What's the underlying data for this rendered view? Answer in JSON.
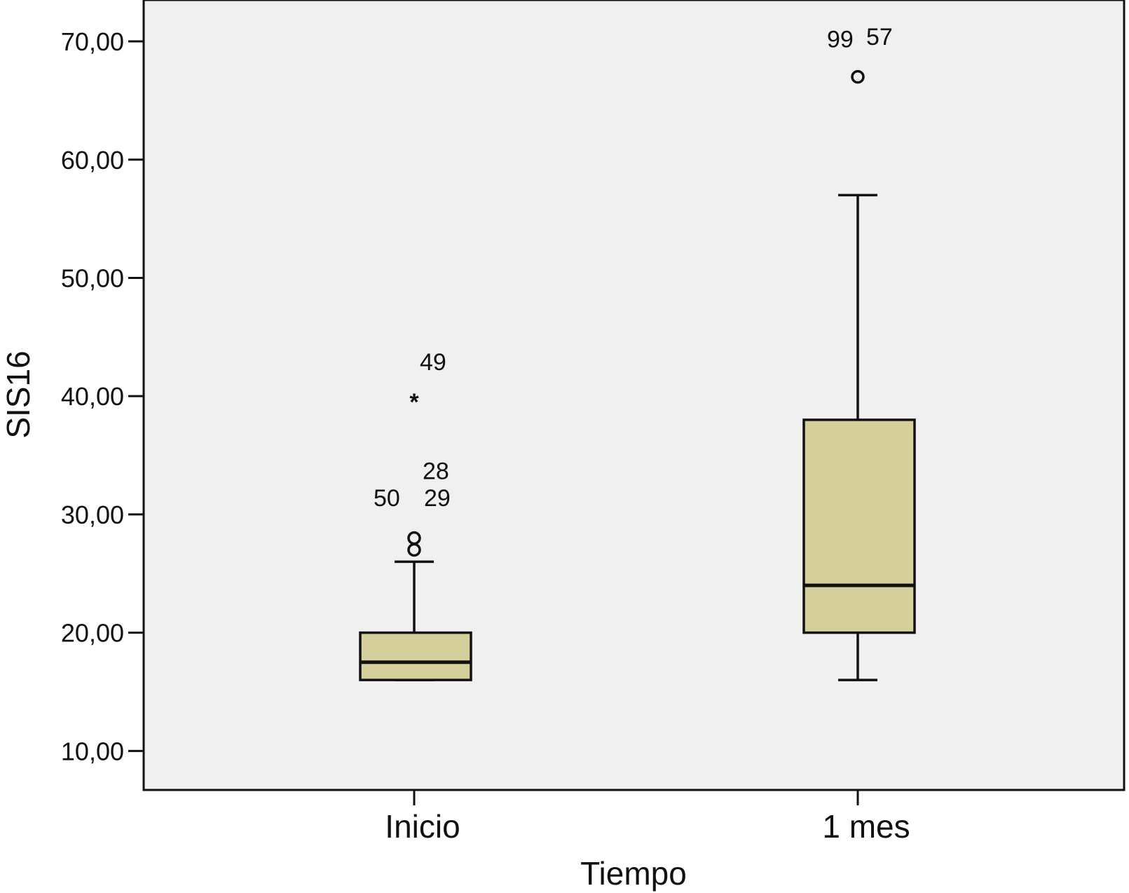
{
  "chart_data": {
    "type": "box",
    "title": "",
    "xlabel": "Tiempo",
    "ylabel": "SIS16",
    "ylim": [
      6.7,
      73.5
    ],
    "yticks": [
      {
        "value": 10,
        "label": "10,00"
      },
      {
        "value": 20,
        "label": "20,00"
      },
      {
        "value": 30,
        "label": "30,00"
      },
      {
        "value": 40,
        "label": "40,00"
      },
      {
        "value": 50,
        "label": "50,00"
      },
      {
        "value": 60,
        "label": "60,00"
      },
      {
        "value": 70,
        "label": "70,00"
      }
    ],
    "grid": false,
    "plot_background": "#f0f0f0",
    "box_fill": "#d4cf9b",
    "categories": [
      "Inicio",
      "1 mes"
    ],
    "boxes": [
      {
        "category": "Inicio",
        "whisker_low": 16,
        "q1": 16,
        "median": 17.5,
        "q3": 20,
        "whisker_high": 26,
        "outliers": [
          {
            "value": 27,
            "marker": "circle",
            "label": "50"
          },
          {
            "value": 28,
            "marker": "circle",
            "label": "29"
          },
          {
            "value": 40,
            "marker": "star",
            "label": "49"
          }
        ],
        "extra_labels": [
          "28"
        ]
      },
      {
        "category": "1 mes",
        "whisker_low": 16,
        "q1": 20,
        "median": 24,
        "q3": 38,
        "whisker_high": 57,
        "outliers": [
          {
            "value": 67,
            "marker": "circle",
            "label": "99"
          }
        ],
        "extra_labels": [
          "57"
        ]
      }
    ]
  }
}
